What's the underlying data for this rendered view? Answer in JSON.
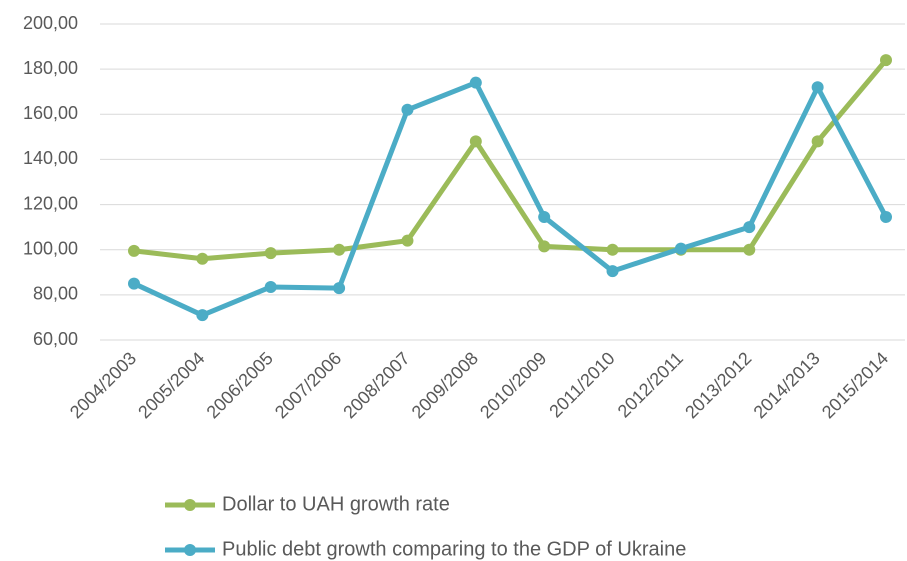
{
  "chart_data": {
    "type": "line",
    "categories": [
      "2004/2003",
      "2005/2004",
      "2006/2005",
      "2007/2006",
      "2008/2007",
      "2009/2008",
      "2010/2009",
      "2011/2010",
      "2012/2011",
      "2013/2012",
      "2014/2013",
      "2015/2014"
    ],
    "series": [
      {
        "name": "Dollar to UAH growth rate",
        "color": "#9bbb59",
        "values": [
          99.5,
          96,
          98.5,
          100,
          104,
          148,
          101.5,
          100,
          100,
          100,
          148,
          184
        ]
      },
      {
        "name": "Public debt growth comparing to the GDP of Ukraine",
        "color": "#4bacc6",
        "values": [
          85,
          71,
          83.5,
          83,
          162,
          174,
          114.5,
          90.5,
          100.5,
          110,
          172,
          114.5
        ]
      }
    ],
    "ylim": [
      60,
      200
    ],
    "yticks": [
      {
        "value": 60,
        "label": "60,00"
      },
      {
        "value": 80,
        "label": "80,00"
      },
      {
        "value": 100,
        "label": "100,00"
      },
      {
        "value": 120,
        "label": "120,00"
      },
      {
        "value": 140,
        "label": "140,00"
      },
      {
        "value": 160,
        "label": "160,00"
      },
      {
        "value": 180,
        "label": "180,00"
      },
      {
        "value": 200,
        "label": "200,00"
      }
    ],
    "grid": true,
    "legend": "bottom"
  }
}
